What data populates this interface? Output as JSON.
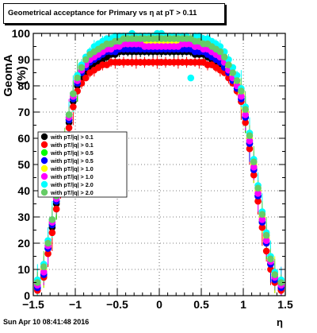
{
  "title": "Geometrical acceptance for Primary vs   η at pT > 0.11",
  "footer": "Sun Apr 10 08:41:48 2016",
  "colors": {
    "frame": "#000000",
    "background": "#ffffff",
    "series": [
      "#000000",
      "#ff0000",
      "#00ff00",
      "#0000ff",
      "#ffff00",
      "#ff00ff",
      "#00ffff",
      "#66cc66"
    ]
  },
  "chart_data": {
    "type": "scatter",
    "title": "Geometrical acceptance for Primary vs   η at pT > 0.11",
    "xlabel": "η",
    "ylabel": "GeomA (%)",
    "xlim": [
      -1.5,
      1.5
    ],
    "ylim": [
      0,
      100
    ],
    "xticks": [
      "−1.5",
      "−1",
      "−0.5",
      "0",
      "0.5",
      "1",
      "1.5"
    ],
    "yticks": [
      "0",
      "10",
      "20",
      "30",
      "40",
      "50",
      "60",
      "70",
      "80",
      "90",
      "100"
    ],
    "grid": true,
    "legend_position": "left-middle",
    "x": [
      -1.45,
      -1.375,
      -1.325,
      -1.275,
      -1.225,
      -1.175,
      -1.125,
      -1.075,
      -1.025,
      -0.975,
      -0.925,
      -0.875,
      -0.825,
      -0.775,
      -0.725,
      -0.675,
      -0.625,
      -0.575,
      -0.525,
      -0.475,
      -0.425,
      -0.375,
      -0.325,
      -0.275,
      -0.225,
      -0.175,
      -0.125,
      -0.075,
      -0.025,
      0.025,
      0.075,
      0.125,
      0.175,
      0.225,
      0.275,
      0.325,
      0.375,
      0.425,
      0.475,
      0.525,
      0.575,
      0.625,
      0.675,
      0.725,
      0.775,
      0.825,
      0.875,
      0.925,
      0.975,
      1.025,
      1.075,
      1.125,
      1.175,
      1.225,
      1.275,
      1.325,
      1.375,
      1.45
    ],
    "series": [
      {
        "name": "with pT/|q| > 0.1",
        "values": [
          3,
          8,
          18,
          26,
          35,
          45,
          55,
          66,
          74,
          80,
          83,
          85,
          87,
          88,
          89,
          90,
          91,
          92,
          92,
          93,
          93,
          93,
          93,
          93,
          93,
          93,
          93,
          93,
          93,
          93,
          93,
          93,
          93,
          93,
          93,
          93,
          93,
          92,
          92,
          92,
          91,
          90,
          89,
          88,
          87,
          85,
          83,
          80,
          76,
          68,
          58,
          48,
          38,
          28,
          20,
          12,
          6,
          3
        ]
      },
      {
        "name": "with pT/|q| > 0.1",
        "values": [
          2,
          7,
          16,
          24,
          33,
          43,
          53,
          64,
          72,
          78,
          81,
          83,
          85,
          86,
          87,
          88,
          88,
          89,
          89,
          89,
          89,
          89,
          89,
          89,
          89,
          89,
          89,
          89,
          89,
          89,
          89,
          89,
          89,
          89,
          89,
          89,
          89,
          89,
          89,
          89,
          88,
          88,
          87,
          86,
          85,
          83,
          81,
          78,
          74,
          66,
          56,
          46,
          36,
          26,
          17,
          10,
          5,
          2
        ]
      },
      {
        "name": "with pT/|q| > 0.5",
        "values": [
          4,
          9,
          19,
          27,
          36,
          46,
          56,
          67,
          75,
          81,
          85,
          88,
          90,
          91,
          92,
          93,
          94,
          94,
          95,
          95,
          95,
          95,
          95,
          95,
          95,
          95,
          95,
          95,
          95,
          95,
          95,
          95,
          95,
          95,
          95,
          95,
          95,
          94,
          94,
          94,
          93,
          92,
          91,
          90,
          88,
          86,
          83,
          80,
          76,
          69,
          59,
          49,
          39,
          29,
          21,
          13,
          7,
          4
        ]
      },
      {
        "name": "with pT/|q| > 0.5",
        "values": [
          3,
          8,
          18,
          27,
          36,
          46,
          56,
          67,
          75,
          81,
          85,
          87,
          89,
          90,
          91,
          92,
          93,
          93,
          93,
          94,
          94,
          94,
          94,
          94,
          94,
          94,
          94,
          94,
          94,
          94,
          94,
          94,
          94,
          94,
          94,
          94,
          94,
          93,
          93,
          93,
          92,
          91,
          90,
          89,
          87,
          85,
          82,
          79,
          75,
          68,
          58,
          48,
          38,
          28,
          20,
          12,
          6,
          3
        ]
      },
      {
        "name": "with pT/|q| > 1.0",
        "values": [
          5,
          10,
          20,
          28,
          37,
          47,
          57,
          68,
          76,
          82,
          86,
          89,
          91,
          92,
          93,
          94,
          95,
          95,
          96,
          96,
          96,
          96,
          96,
          96,
          96,
          96,
          96,
          96,
          96,
          96,
          96,
          96,
          96,
          96,
          96,
          96,
          96,
          95,
          95,
          95,
          94,
          93,
          92,
          91,
          89,
          87,
          84,
          81,
          77,
          70,
          60,
          50,
          40,
          30,
          22,
          14,
          8,
          5
        ]
      },
      {
        "name": "with pT/|q| > 1.0",
        "values": [
          4,
          9,
          19,
          28,
          37,
          47,
          57,
          68,
          76,
          82,
          86,
          88,
          90,
          91,
          92,
          93,
          94,
          94,
          95,
          95,
          96,
          96,
          96,
          96,
          96,
          95,
          95,
          95,
          95,
          95,
          95,
          95,
          95,
          95,
          96,
          96,
          96,
          95,
          95,
          94,
          94,
          93,
          92,
          91,
          89,
          86,
          83,
          80,
          76,
          69,
          59,
          49,
          39,
          29,
          21,
          13,
          7,
          4
        ]
      },
      {
        "name": "with pT/|q| > 2.0",
        "values": [
          6,
          12,
          21,
          29,
          38,
          48,
          58,
          69,
          77,
          84,
          88,
          91,
          93,
          95,
          96,
          97,
          98,
          98,
          99,
          99,
          99,
          99,
          100,
          99,
          99,
          99,
          99,
          99,
          100,
          100,
          99,
          99,
          99,
          99,
          99,
          99,
          83,
          99,
          99,
          98,
          98,
          97,
          96,
          95,
          93,
          90,
          87,
          84,
          79,
          72,
          62,
          52,
          42,
          32,
          24,
          15,
          9,
          6
        ]
      },
      {
        "name": "with pT/|q| > 2.0",
        "values": [
          5,
          11,
          20,
          29,
          38,
          48,
          58,
          69,
          77,
          83,
          87,
          90,
          92,
          93,
          94,
          95,
          96,
          96,
          97,
          97,
          98,
          98,
          98,
          98,
          98,
          98,
          98,
          98,
          98,
          98,
          98,
          98,
          98,
          98,
          98,
          98,
          98,
          97,
          97,
          96,
          96,
          95,
          94,
          93,
          91,
          88,
          85,
          82,
          78,
          71,
          61,
          51,
          41,
          31,
          23,
          14,
          8,
          5
        ]
      }
    ]
  }
}
